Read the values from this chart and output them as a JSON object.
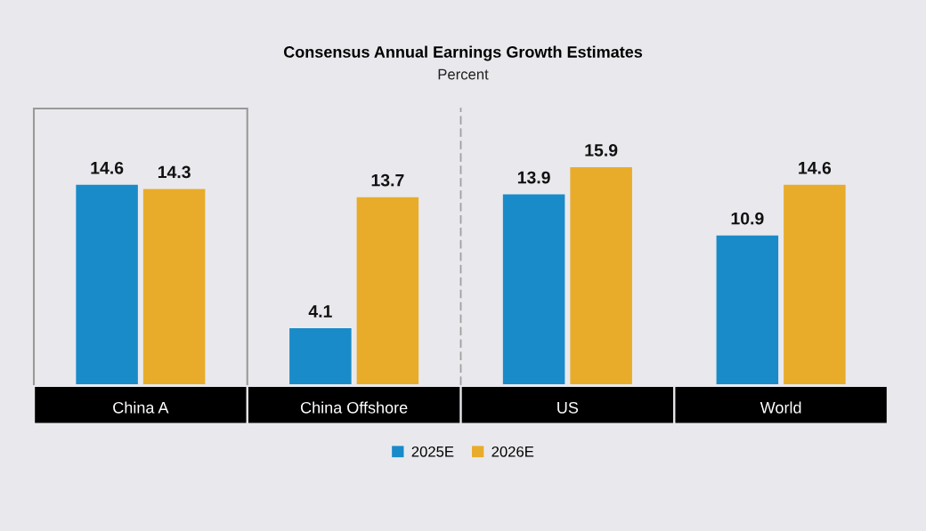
{
  "chart_data": {
    "type": "bar",
    "title": "Consensus Annual Earnings Growth Estimates",
    "subtitle": "Percent",
    "categories": [
      "China A",
      "China Offshore",
      "US",
      "World"
    ],
    "series": [
      {
        "name": "2025E",
        "color": "#1a8bc9",
        "values": [
          14.6,
          4.1,
          13.9,
          10.9
        ]
      },
      {
        "name": "2026E",
        "color": "#e8ac2a",
        "values": [
          14.3,
          13.7,
          15.9,
          14.6
        ]
      }
    ],
    "data_labels": true,
    "legend": "bottom",
    "grid": false
  }
}
